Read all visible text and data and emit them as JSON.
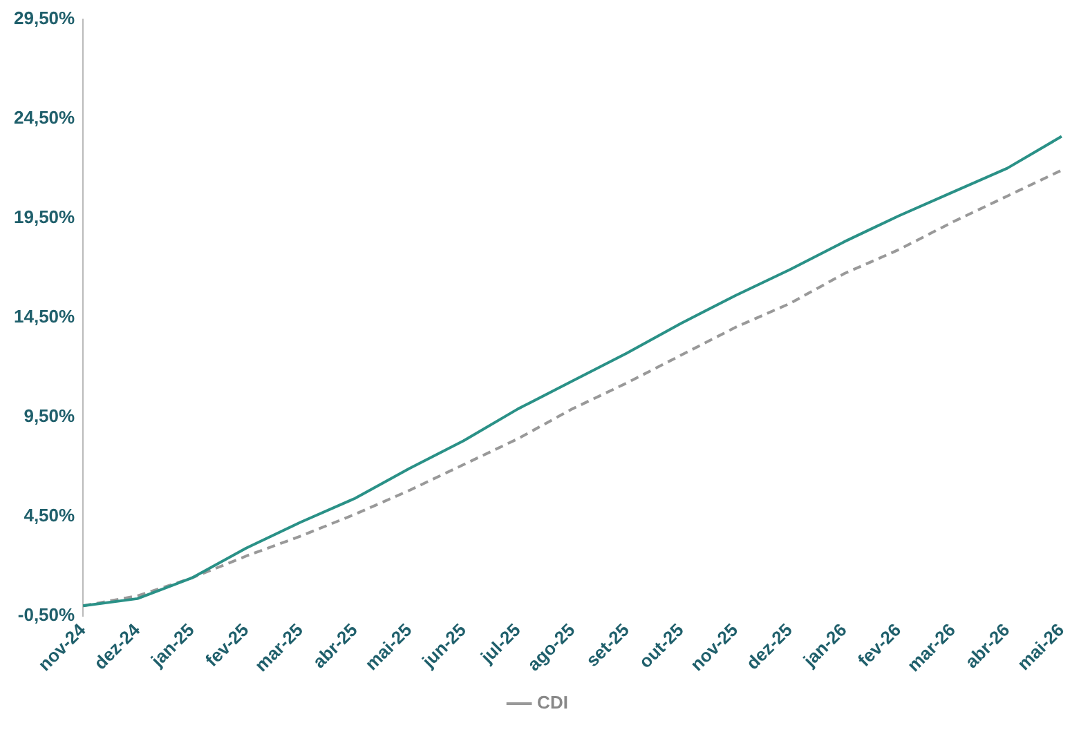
{
  "chart_data": {
    "type": "line",
    "categories": [
      "nov-24",
      "dez-24",
      "jan-25",
      "fev-25",
      "mar-25",
      "abr-25",
      "mai-25",
      "jun-25",
      "jul-25",
      "ago-25",
      "set-25",
      "out-25",
      "nov-25",
      "dez-25",
      "jan-26",
      "fev-26",
      "mar-26",
      "abr-26",
      "mai-26"
    ],
    "series": [
      {
        "color": "#2a9187",
        "line_style": "solid",
        "values": [
          0,
          0.36,
          1.4,
          2.9,
          4.2,
          5.4,
          6.9,
          8.3,
          9.9,
          11.3,
          12.7,
          14.2,
          15.6,
          16.9,
          18.3,
          19.6,
          20.8,
          22.0,
          23.6
        ]
      },
      {
        "name": "CDI",
        "color": "#999999",
        "line_style": "dashed",
        "values": [
          0,
          0.5,
          1.4,
          2.5,
          3.5,
          4.6,
          5.8,
          7.1,
          8.4,
          9.9,
          11.2,
          12.6,
          14.0,
          15.2,
          16.7,
          17.9,
          19.3,
          20.6,
          21.9
        ]
      }
    ],
    "ylim": [
      -0.5,
      29.5
    ],
    "yticks": [
      {
        "value": -0.5,
        "label": "-0,50%"
      },
      {
        "value": 4.5,
        "label": "4,50%"
      },
      {
        "value": 9.5,
        "label": "9,50%"
      },
      {
        "value": 14.5,
        "label": "14,50%"
      },
      {
        "value": 19.5,
        "label": "19,50%"
      },
      {
        "value": 24.5,
        "label": "24,50%"
      },
      {
        "value": 29.5,
        "label": "29,50%"
      }
    ],
    "grid": false,
    "legend": "bottom",
    "marker": "none"
  }
}
